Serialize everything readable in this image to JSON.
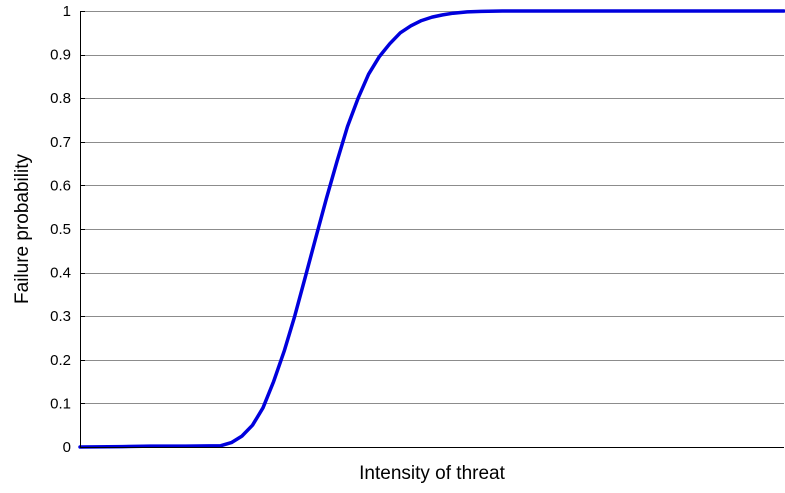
{
  "chart_data": {
    "type": "line",
    "title": "",
    "xlabel": "Intensity of threat",
    "ylabel": "Failure probability",
    "ylim": [
      0,
      1
    ],
    "xlim": [
      0,
      1
    ],
    "show_x_ticks": false,
    "yticks": [
      "0",
      "0.1",
      "0.2",
      "0.3",
      "0.4",
      "0.5",
      "0.6",
      "0.7",
      "0.8",
      "0.9",
      "1"
    ],
    "grid": "horizontal",
    "line_color": "#0000dd",
    "series": [
      {
        "x": [
          0.0,
          0.06,
          0.1,
          0.15,
          0.2,
          0.215,
          0.23,
          0.245,
          0.26,
          0.275,
          0.29,
          0.305,
          0.32,
          0.335,
          0.35,
          0.365,
          0.38,
          0.395,
          0.41,
          0.425,
          0.44,
          0.455,
          0.47,
          0.485,
          0.5,
          0.515,
          0.53,
          0.55,
          0.57,
          0.6,
          0.63,
          0.66,
          0.7,
          0.8,
          0.9,
          1.0
        ],
        "y": [
          0.0,
          0.001,
          0.002,
          0.002,
          0.003,
          0.01,
          0.025,
          0.05,
          0.09,
          0.15,
          0.22,
          0.3,
          0.39,
          0.48,
          0.57,
          0.655,
          0.735,
          0.8,
          0.855,
          0.895,
          0.925,
          0.95,
          0.966,
          0.978,
          0.986,
          0.991,
          0.995,
          0.998,
          0.999,
          1.0,
          1.0,
          1.0,
          1.0,
          1.0,
          1.0,
          1.0
        ]
      }
    ]
  }
}
